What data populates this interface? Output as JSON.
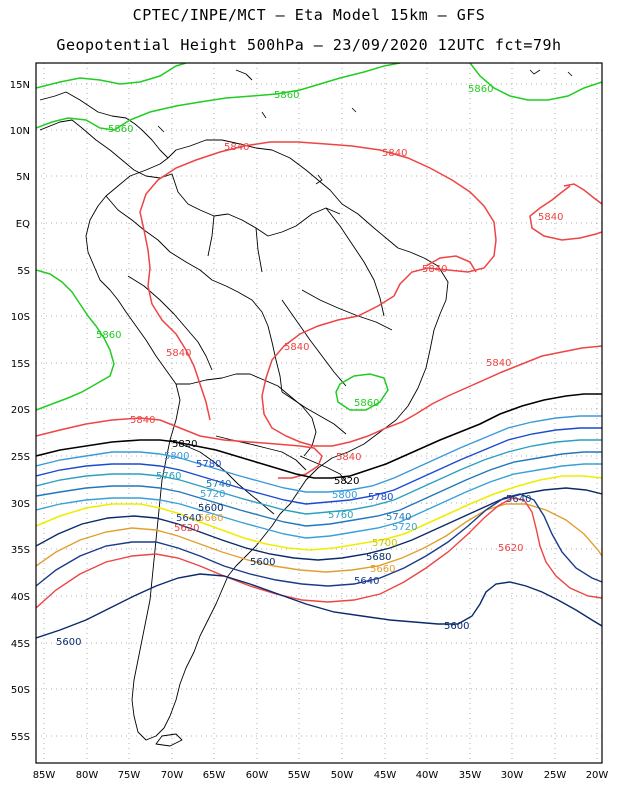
{
  "title_line1": "CPTEC/INPE/MCT –  Eta Model 15km – GFS",
  "title_line2": "Geopotential Height 500hPa – 23/09/2020 12UTC fct=79h",
  "lat_ticks": [
    "15N",
    "10N",
    "5N",
    "EQ",
    "5S",
    "10S",
    "15S",
    "20S",
    "25S",
    "30S",
    "35S",
    "40S",
    "45S",
    "50S",
    "55S"
  ],
  "lon_ticks": [
    "85W",
    "80W",
    "75W",
    "70W",
    "65W",
    "60W",
    "55W",
    "50W",
    "45W",
    "40W",
    "35W",
    "30W",
    "25W",
    "20W"
  ],
  "colors": {
    "c5860": "#22cc22",
    "c5840": "#ee4444",
    "c5820": "#000000",
    "c5800": "#3a9ad9",
    "c5780": "#1a4ad0",
    "c5760": "#2aa0c0",
    "c5740": "#2277bb",
    "c5720": "#38a0d8",
    "c5700": "#eeee00",
    "c5680": "#0a2a6a",
    "c5660": "#e0a030",
    "c5640": "#1a3a8a",
    "c5620": "#ee4444",
    "c5600": "#0a2a6a"
  },
  "contour_labels": {
    "g1": "5860",
    "g2": "5860",
    "g3": "5860",
    "g4": "5860",
    "g5": "5860",
    "r1": "5840",
    "r2": "5840",
    "r3": "5840",
    "r4": "5840",
    "r5": "5840",
    "r6": "5840",
    "r7": "5840",
    "r8": "5840",
    "k1": "5820",
    "k2": "5820",
    "b1": "5800",
    "b2": "5800",
    "b3": "5780",
    "b4": "5780",
    "b5": "5760",
    "b6": "5760",
    "b7": "5740",
    "b8": "5740",
    "b9": "5720",
    "b10": "5720",
    "y1": "5700",
    "n1": "5680",
    "o1": "5660",
    "o2": "5660",
    "n2": "5640",
    "n3": "5640",
    "n4": "5640",
    "p1": "5620",
    "p2": "5620",
    "n5": "5600",
    "n6": "5600",
    "n7": "5600"
  }
}
